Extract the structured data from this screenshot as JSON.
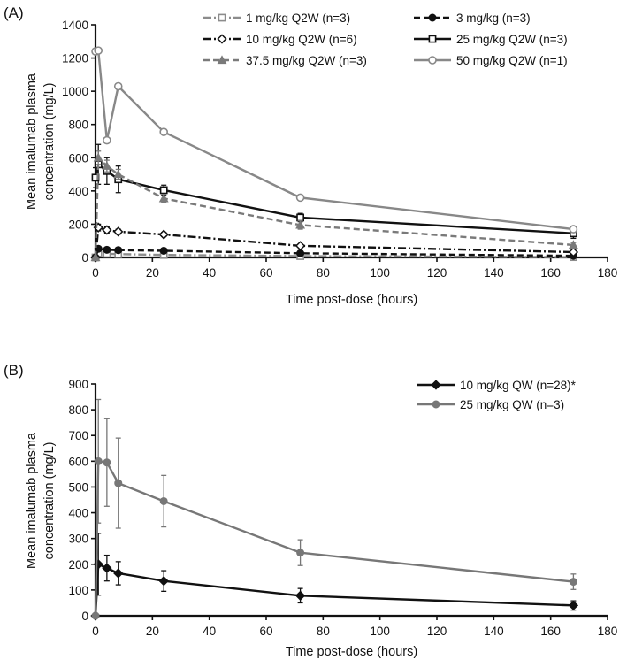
{
  "chart_data": [
    {
      "type": "line",
      "panel_label": "(A)",
      "xlabel": "Time post-dose (hours)",
      "ylabel_lines": [
        "Mean imalumab plasma",
        "concentration (mg/L)"
      ],
      "xlim": [
        0,
        180
      ],
      "ylim": [
        0,
        1400
      ],
      "xticks": [
        0,
        20,
        40,
        60,
        80,
        100,
        120,
        140,
        160,
        180
      ],
      "yticks": [
        0,
        200,
        400,
        600,
        800,
        1000,
        1200,
        1400
      ],
      "grid": false,
      "legend_position": "top-right",
      "x": [
        0,
        1,
        4,
        8,
        24,
        72,
        168
      ],
      "series": [
        {
          "name": "1 mg/kg Q2W (n=3)",
          "color": "#8c8c8c",
          "dash": "dashdot",
          "marker": "square",
          "values": [
            0,
            26,
            22,
            20,
            15,
            8,
            2
          ],
          "errors": [
            0,
            5,
            5,
            4,
            3,
            2,
            1
          ]
        },
        {
          "name": "3 mg/kg (n=3)",
          "color": "#111111",
          "dash": "dashed",
          "marker": "circle-filled",
          "values": [
            0,
            52,
            46,
            44,
            40,
            25,
            10
          ],
          "errors": [
            0,
            8,
            6,
            6,
            5,
            4,
            3
          ]
        },
        {
          "name": "10 mg/kg Q2W (n=6)",
          "color": "#111111",
          "dash": "dashdot",
          "marker": "diamond",
          "values": [
            0,
            180,
            165,
            155,
            138,
            70,
            32
          ],
          "errors": [
            0,
            20,
            18,
            15,
            12,
            10,
            8
          ]
        },
        {
          "name": "25 mg/kg Q2W (n=3)",
          "color": "#111111",
          "dash": "solid",
          "marker": "square",
          "values": [
            480,
            560,
            520,
            470,
            405,
            240,
            145
          ],
          "errors": [
            60,
            120,
            80,
            80,
            30,
            25,
            30
          ]
        },
        {
          "name": "37.5 mg/kg Q2W (n=3)",
          "color": "#7a7a7a",
          "dash": "dashed",
          "marker": "triangle",
          "values": [
            0,
            600,
            550,
            500,
            355,
            195,
            75
          ],
          "errors": [
            0,
            40,
            35,
            30,
            25,
            25,
            15
          ]
        },
        {
          "name": "50 mg/kg Q2W (n=1)",
          "color": "#888888",
          "dash": "solid",
          "marker": "circle-open",
          "values": [
            1240,
            1245,
            705,
            1030,
            755,
            360,
            170
          ],
          "errors": null
        }
      ]
    },
    {
      "type": "line",
      "panel_label": "(B)",
      "xlabel": "Time post-dose (hours)",
      "ylabel_lines": [
        "Mean imalumab plasma",
        "concentration (mg/L)"
      ],
      "xlim": [
        0,
        180
      ],
      "ylim": [
        0,
        900
      ],
      "xticks": [
        0,
        20,
        40,
        60,
        80,
        100,
        120,
        140,
        160,
        180
      ],
      "yticks": [
        0,
        100,
        200,
        300,
        400,
        500,
        600,
        700,
        800,
        900
      ],
      "grid": false,
      "legend_position": "top-right",
      "x": [
        0,
        1,
        4,
        8,
        24,
        72,
        168
      ],
      "series": [
        {
          "name": "10 mg/kg QW (n=28)*",
          "color": "#111111",
          "dash": "solid",
          "marker": "diamond-filled",
          "values": [
            0,
            200,
            185,
            165,
            135,
            78,
            40
          ],
          "errors": [
            0,
            120,
            50,
            45,
            40,
            28,
            18
          ]
        },
        {
          "name": "25 mg/kg QW (n=3)",
          "color": "#777777",
          "dash": "solid",
          "marker": "circle-filled",
          "values": [
            0,
            600,
            595,
            515,
            445,
            245,
            132
          ],
          "errors": [
            0,
            240,
            170,
            175,
            100,
            50,
            30
          ]
        }
      ]
    }
  ]
}
